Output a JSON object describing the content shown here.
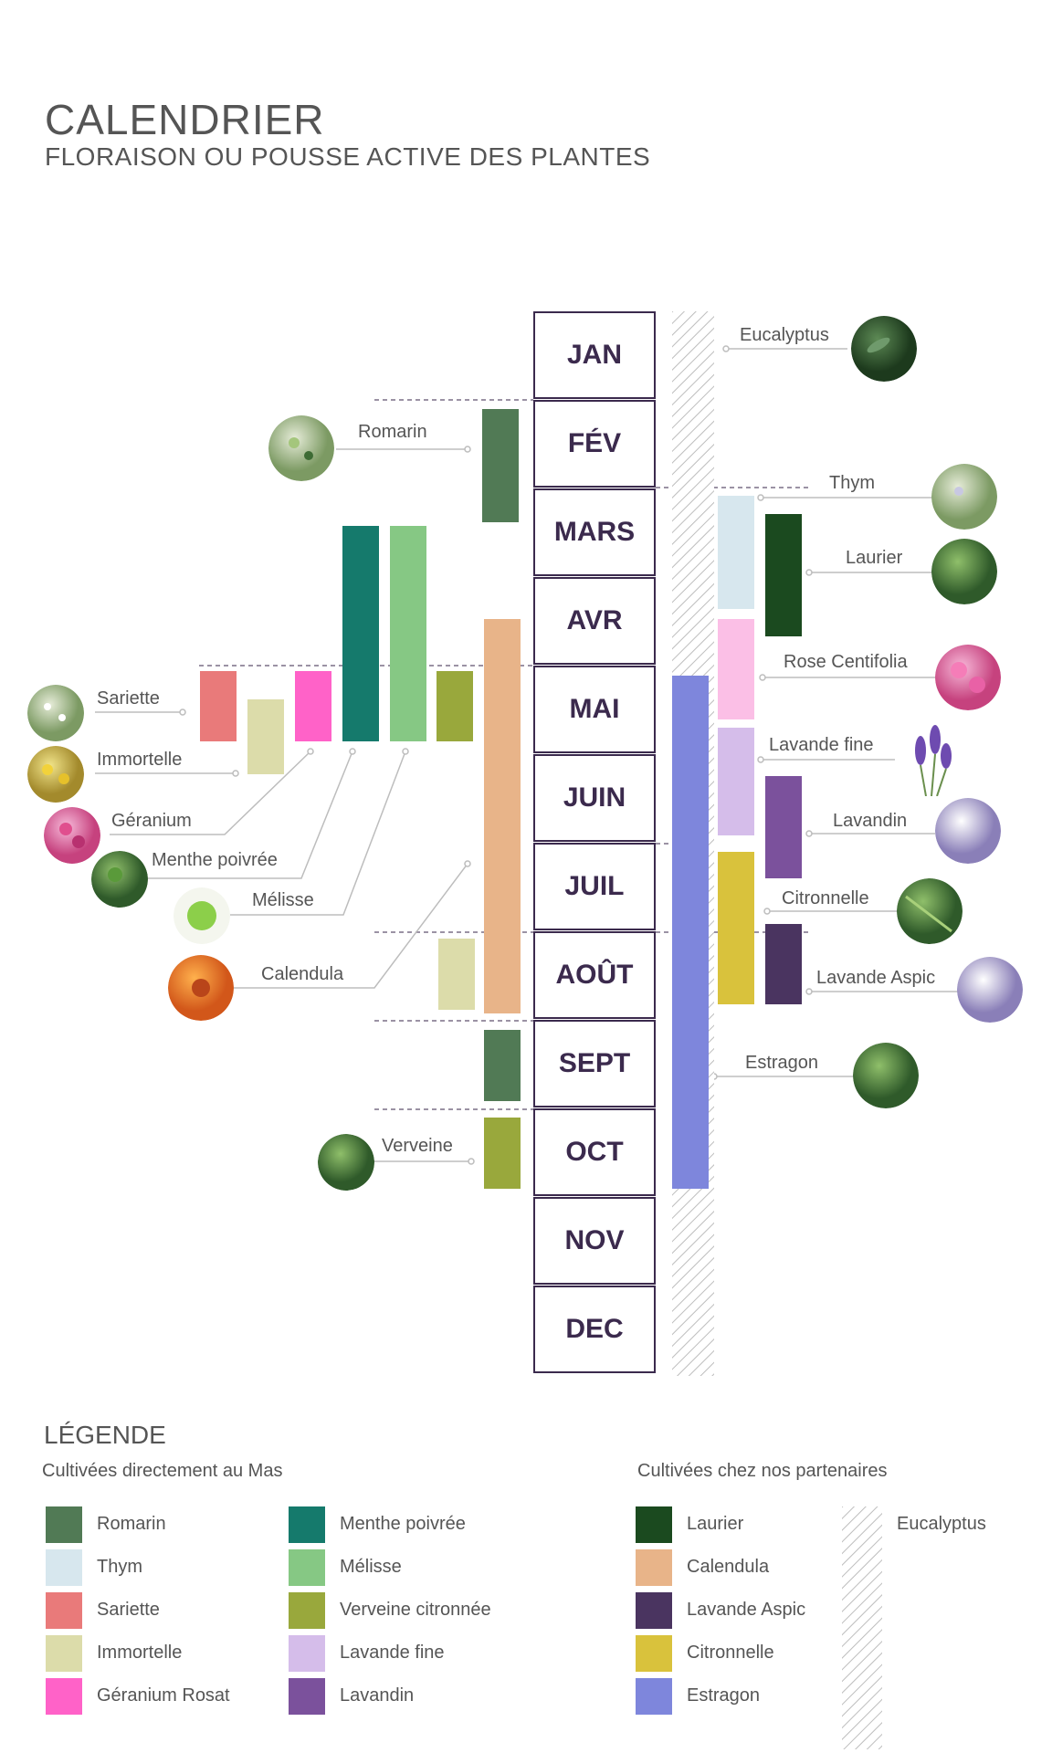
{
  "header": {
    "title": "CALENDRIER",
    "subtitle": "FLORAISON OU POUSSE ACTIVE DES PLANTES"
  },
  "months": [
    "JAN",
    "FÉV",
    "MARS",
    "AVR",
    "MAI",
    "JUIN",
    "JUIL",
    "AOÛT",
    "SEPT",
    "OCT",
    "NOV",
    "DEC"
  ],
  "colors": {
    "romarin": "#517a55",
    "thym": "#d7e7ee",
    "sariette": "#e97a7a",
    "immortelle": "#dcdcaa",
    "geranium": "#ff62c8",
    "menthe": "#157a6c",
    "melisse": "#86c884",
    "verveine": "#99a83c",
    "lavande_fine": "#d5bdea",
    "lavandin": "#7b519c",
    "laurier": "#1b4a1f",
    "calendula": "#e8b489",
    "lavande_aspic": "#4a3460",
    "citronnelle": "#d9c23c",
    "estragon": "#7e86dc",
    "rose": "#fbbfe6",
    "eucalyptus_hatch": "#bbbbbb",
    "month_border": "#3b2a4d"
  },
  "plants": {
    "romarin": "Romarin",
    "sariette": "Sariette",
    "immortelle": "Immortelle",
    "geranium": "Géranium",
    "menthe": "Menthe poivrée",
    "melisse": "Mélisse",
    "calendula": "Calendula",
    "verveine": "Verveine",
    "eucalyptus": "Eucalyptus",
    "thym": "Thym",
    "laurier": "Laurier",
    "rose": "Rose Centifolia",
    "lavande_fine": "Lavande fine",
    "lavandin": "Lavandin",
    "citronnelle": "Citronnelle",
    "lavande_aspic": "Lavande Aspic",
    "estragon": "Estragon"
  },
  "legend": {
    "title": "LÉGENDE",
    "mas_heading": "Cultivées directement au Mas",
    "partners_heading": "Cultivées chez nos partenaires",
    "col1": [
      {
        "label": "Romarin",
        "color": "#517a55"
      },
      {
        "label": "Thym",
        "color": "#d7e7ee"
      },
      {
        "label": "Sariette",
        "color": "#e97a7a"
      },
      {
        "label": "Immortelle",
        "color": "#dcdcaa"
      },
      {
        "label": "Géranium Rosat",
        "color": "#ff62c8"
      }
    ],
    "col2": [
      {
        "label": "Menthe poivrée",
        "color": "#157a6c"
      },
      {
        "label": "Mélisse",
        "color": "#86c884"
      },
      {
        "label": "Verveine citronnée",
        "color": "#99a83c"
      },
      {
        "label": "Lavande fine",
        "color": "#d5bdea"
      },
      {
        "label": "Lavandin",
        "color": "#7b519c"
      }
    ],
    "col3": [
      {
        "label": "Laurier",
        "color": "#1b4a1f"
      },
      {
        "label": "Calendula",
        "color": "#e8b489"
      },
      {
        "label": "Lavande Aspic",
        "color": "#4a3460"
      },
      {
        "label": "Citronnelle",
        "color": "#d9c23c"
      },
      {
        "label": "Estragon",
        "color": "#7e86dc"
      }
    ],
    "col4": [
      {
        "label": "Eucalyptus",
        "color": "hatch"
      }
    ]
  }
}
